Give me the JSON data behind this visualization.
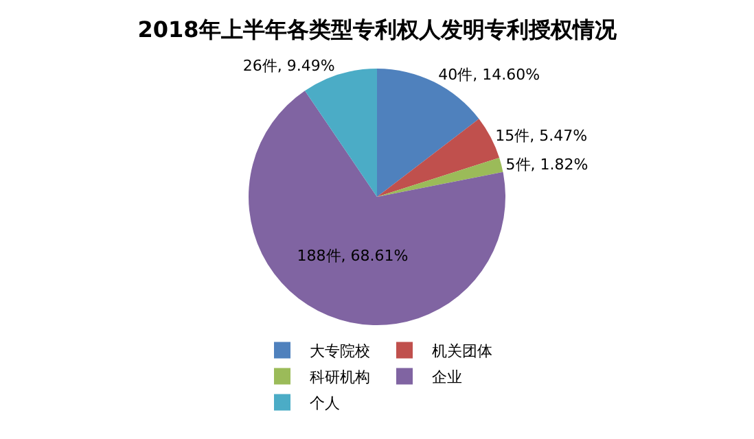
{
  "chart_data": {
    "type": "pie",
    "title": "2018年上半年各类型专利权人发明专利授权情况",
    "categories": [
      "大专院校",
      "机关团体",
      "科研机构",
      "企业",
      "个人"
    ],
    "values": [
      40,
      15,
      5,
      188,
      26
    ],
    "colors": [
      "#4f81bd",
      "#c0504d",
      "#9bbb59",
      "#8064a2",
      "#4bacc6"
    ],
    "value_labels": [
      "40件, 14.60%",
      "15件, 5.47%",
      "5件, 1.82%",
      "188件, 68.61%",
      "26件, 9.49%"
    ],
    "legend": "bottom"
  }
}
